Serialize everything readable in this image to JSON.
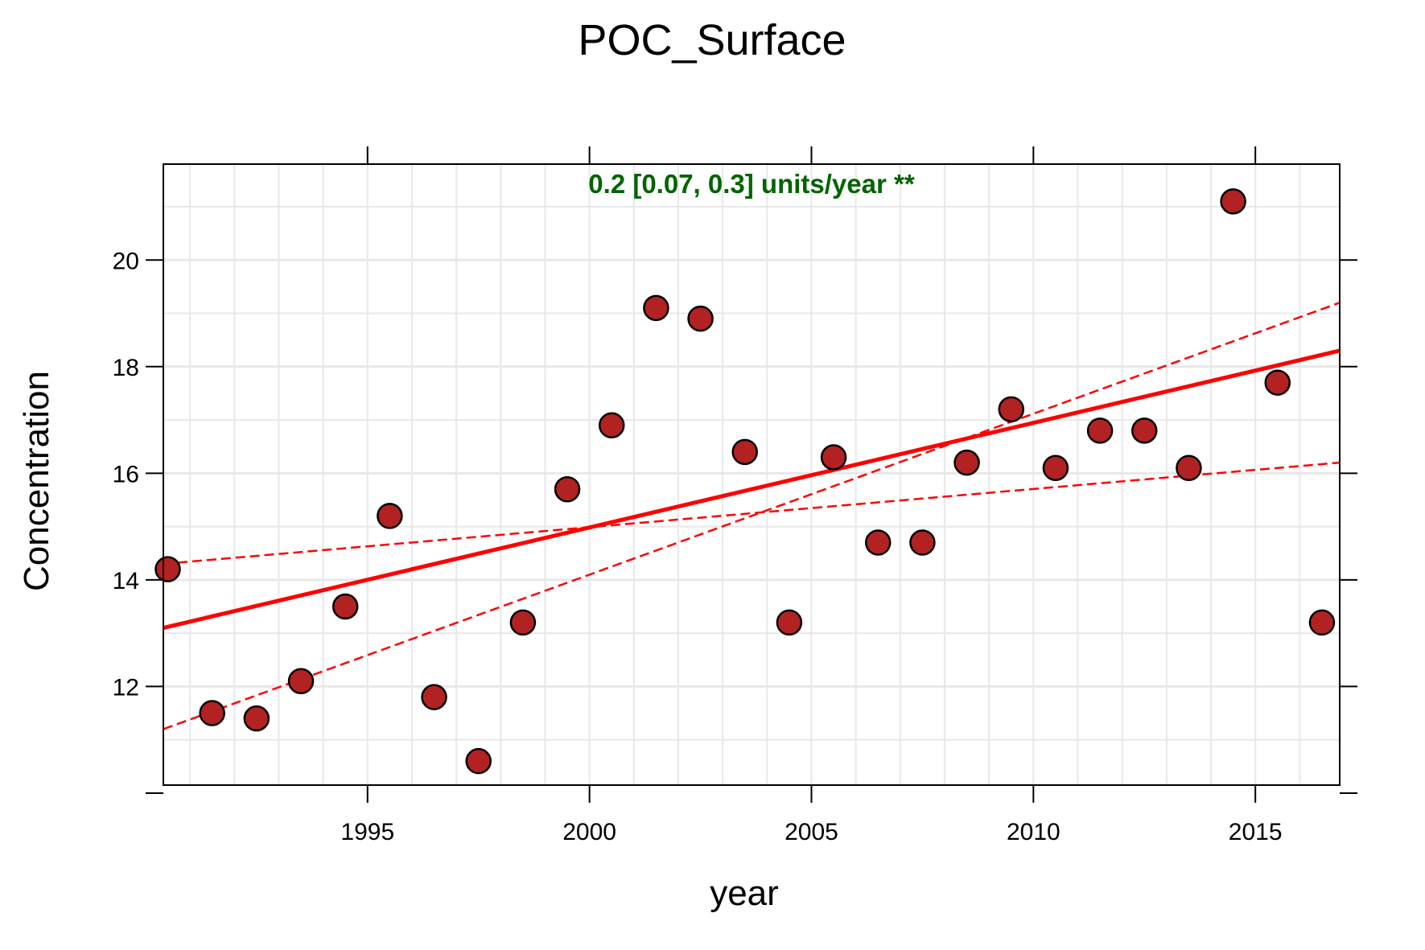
{
  "chart_data": {
    "type": "scatter",
    "title": "POC_Surface",
    "xlabel": "year",
    "ylabel": "Concentration",
    "xlim": [
      1990.4,
      2016.9
    ],
    "ylim": [
      10.15,
      21.8
    ],
    "xticks": [
      1995,
      2000,
      2005,
      2010,
      2015
    ],
    "yticks": [
      10,
      12,
      14,
      16,
      18,
      20
    ],
    "ytick_labels": [
      "",
      "12",
      "14",
      "16",
      "18",
      "20"
    ],
    "grid": true,
    "annotation": {
      "text": "0.2 [0.07, 0.3] units/year **",
      "color": "#006400"
    },
    "points": [
      {
        "x": 1990.5,
        "y": 14.2
      },
      {
        "x": 1991.5,
        "y": 11.5
      },
      {
        "x": 1992.5,
        "y": 11.4
      },
      {
        "x": 1993.5,
        "y": 12.1
      },
      {
        "x": 1994.5,
        "y": 13.5
      },
      {
        "x": 1995.5,
        "y": 15.2
      },
      {
        "x": 1996.5,
        "y": 11.8
      },
      {
        "x": 1997.5,
        "y": 10.6
      },
      {
        "x": 1998.5,
        "y": 13.2
      },
      {
        "x": 1999.5,
        "y": 15.7
      },
      {
        "x": 2000.5,
        "y": 16.9
      },
      {
        "x": 2001.5,
        "y": 19.1
      },
      {
        "x": 2002.5,
        "y": 18.9
      },
      {
        "x": 2003.5,
        "y": 16.4
      },
      {
        "x": 2004.5,
        "y": 13.2
      },
      {
        "x": 2005.5,
        "y": 16.3
      },
      {
        "x": 2006.5,
        "y": 14.7
      },
      {
        "x": 2007.5,
        "y": 14.7
      },
      {
        "x": 2008.5,
        "y": 16.2
      },
      {
        "x": 2009.5,
        "y": 17.2
      },
      {
        "x": 2010.5,
        "y": 16.1
      },
      {
        "x": 2011.5,
        "y": 16.8
      },
      {
        "x": 2012.5,
        "y": 16.8
      },
      {
        "x": 2013.5,
        "y": 16.1
      },
      {
        "x": 2014.5,
        "y": 21.1
      },
      {
        "x": 2015.5,
        "y": 17.7
      },
      {
        "x": 2016.5,
        "y": 13.2
      }
    ],
    "trend_line": {
      "x": [
        1990.4,
        2016.9
      ],
      "y": [
        13.1,
        18.3
      ]
    },
    "confidence_lines": [
      {
        "x": [
          1990.4,
          2016.9
        ],
        "y": [
          11.2,
          19.2
        ]
      },
      {
        "x": [
          1990.4,
          2016.9
        ],
        "y": [
          14.3,
          16.2
        ]
      }
    ],
    "colors": {
      "point_fill": "#b22222",
      "point_stroke": "#000000",
      "trend": "#ff0000",
      "grid": "#e8e8e8",
      "frame": "#000000"
    }
  }
}
